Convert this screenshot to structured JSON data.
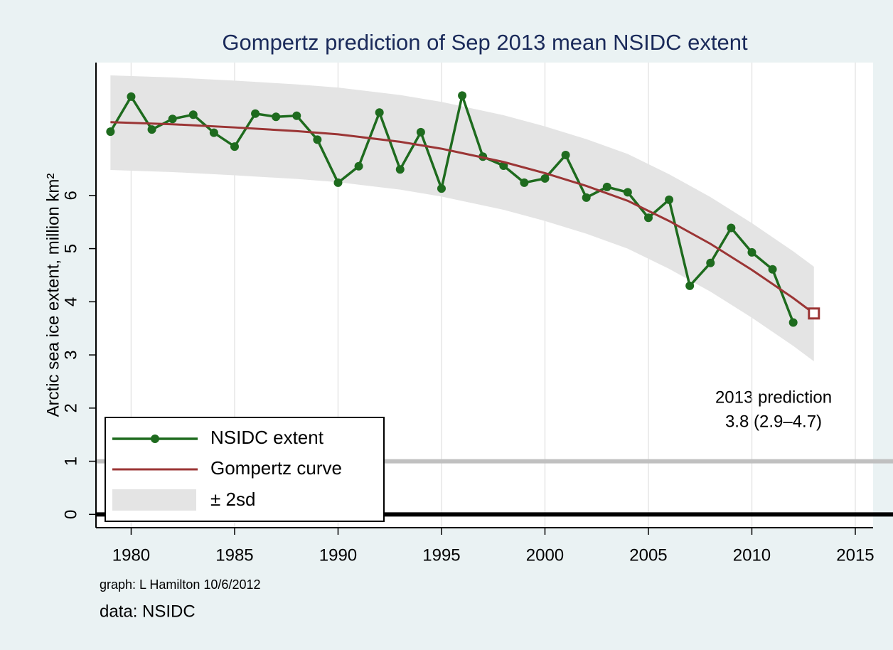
{
  "chart_data": {
    "type": "line",
    "title": "Gompertz prediction of Sep 2013 mean NSIDC extent",
    "y_label": "Arctic sea ice extent, million km²",
    "xlim": [
      1978.3,
      2015.86
    ],
    "xticks": [
      1980,
      1985,
      1990,
      1995,
      2000,
      2005,
      2010,
      2015
    ],
    "ylim": [
      -0.25,
      8.5
    ],
    "yticks": [
      0,
      1,
      2,
      3,
      4,
      5,
      6
    ],
    "grid": true,
    "series": [
      {
        "name": "NSIDC extent",
        "color": "#1e6b1e",
        "x": [
          1979,
          1980,
          1981,
          1982,
          1983,
          1984,
          1985,
          1986,
          1987,
          1988,
          1989,
          1990,
          1991,
          1992,
          1993,
          1994,
          1995,
          1996,
          1997,
          1998,
          1999,
          2000,
          2001,
          2002,
          2003,
          2004,
          2005,
          2006,
          2007,
          2008,
          2009,
          2010,
          2011,
          2012
        ],
        "values": [
          7.2,
          7.86,
          7.24,
          7.44,
          7.52,
          7.18,
          6.92,
          7.54,
          7.48,
          7.5,
          7.05,
          6.24,
          6.55,
          7.56,
          6.49,
          7.19,
          6.13,
          7.88,
          6.73,
          6.56,
          6.24,
          6.32,
          6.76,
          5.96,
          6.16,
          6.06,
          5.58,
          5.92,
          4.3,
          4.73,
          5.39,
          4.93,
          4.61,
          3.61
        ]
      },
      {
        "name": "Gompertz curve",
        "color": "#9b3535",
        "x": [
          1979,
          1982,
          1985,
          1988,
          1990,
          1993,
          1995,
          1998,
          2000,
          2002,
          2004,
          2006,
          2008,
          2010,
          2012,
          2013
        ],
        "values": [
          7.38,
          7.34,
          7.28,
          7.21,
          7.15,
          7.01,
          6.88,
          6.63,
          6.42,
          6.18,
          5.9,
          5.52,
          5.09,
          4.6,
          4.07,
          3.78
        ]
      }
    ],
    "band": {
      "name": "± 2sd",
      "color": "#e4e4e4",
      "x": [
        1979,
        1982,
        1985,
        1988,
        1990,
        1993,
        1995,
        1998,
        2000,
        2002,
        2004,
        2006,
        2008,
        2010,
        2012,
        2013
      ],
      "upper": [
        8.26,
        8.22,
        8.16,
        8.09,
        8.03,
        7.89,
        7.76,
        7.51,
        7.3,
        7.06,
        6.78,
        6.4,
        5.97,
        5.48,
        4.95,
        4.66
      ],
      "lower": [
        6.48,
        6.44,
        6.38,
        6.31,
        6.25,
        6.11,
        5.98,
        5.73,
        5.52,
        5.28,
        5.0,
        4.62,
        4.19,
        3.7,
        3.17,
        2.88
      ]
    },
    "hlines": [
      {
        "value": 1,
        "color": "#c0c0c0"
      },
      {
        "value": 0,
        "color": "#000000"
      }
    ],
    "annotations": [
      "2013 prediction",
      "3.8  (2.9–4.7)"
    ],
    "notes": [
      "graph:  L Hamilton 10/6/2012",
      "data:  NSIDC"
    ]
  }
}
